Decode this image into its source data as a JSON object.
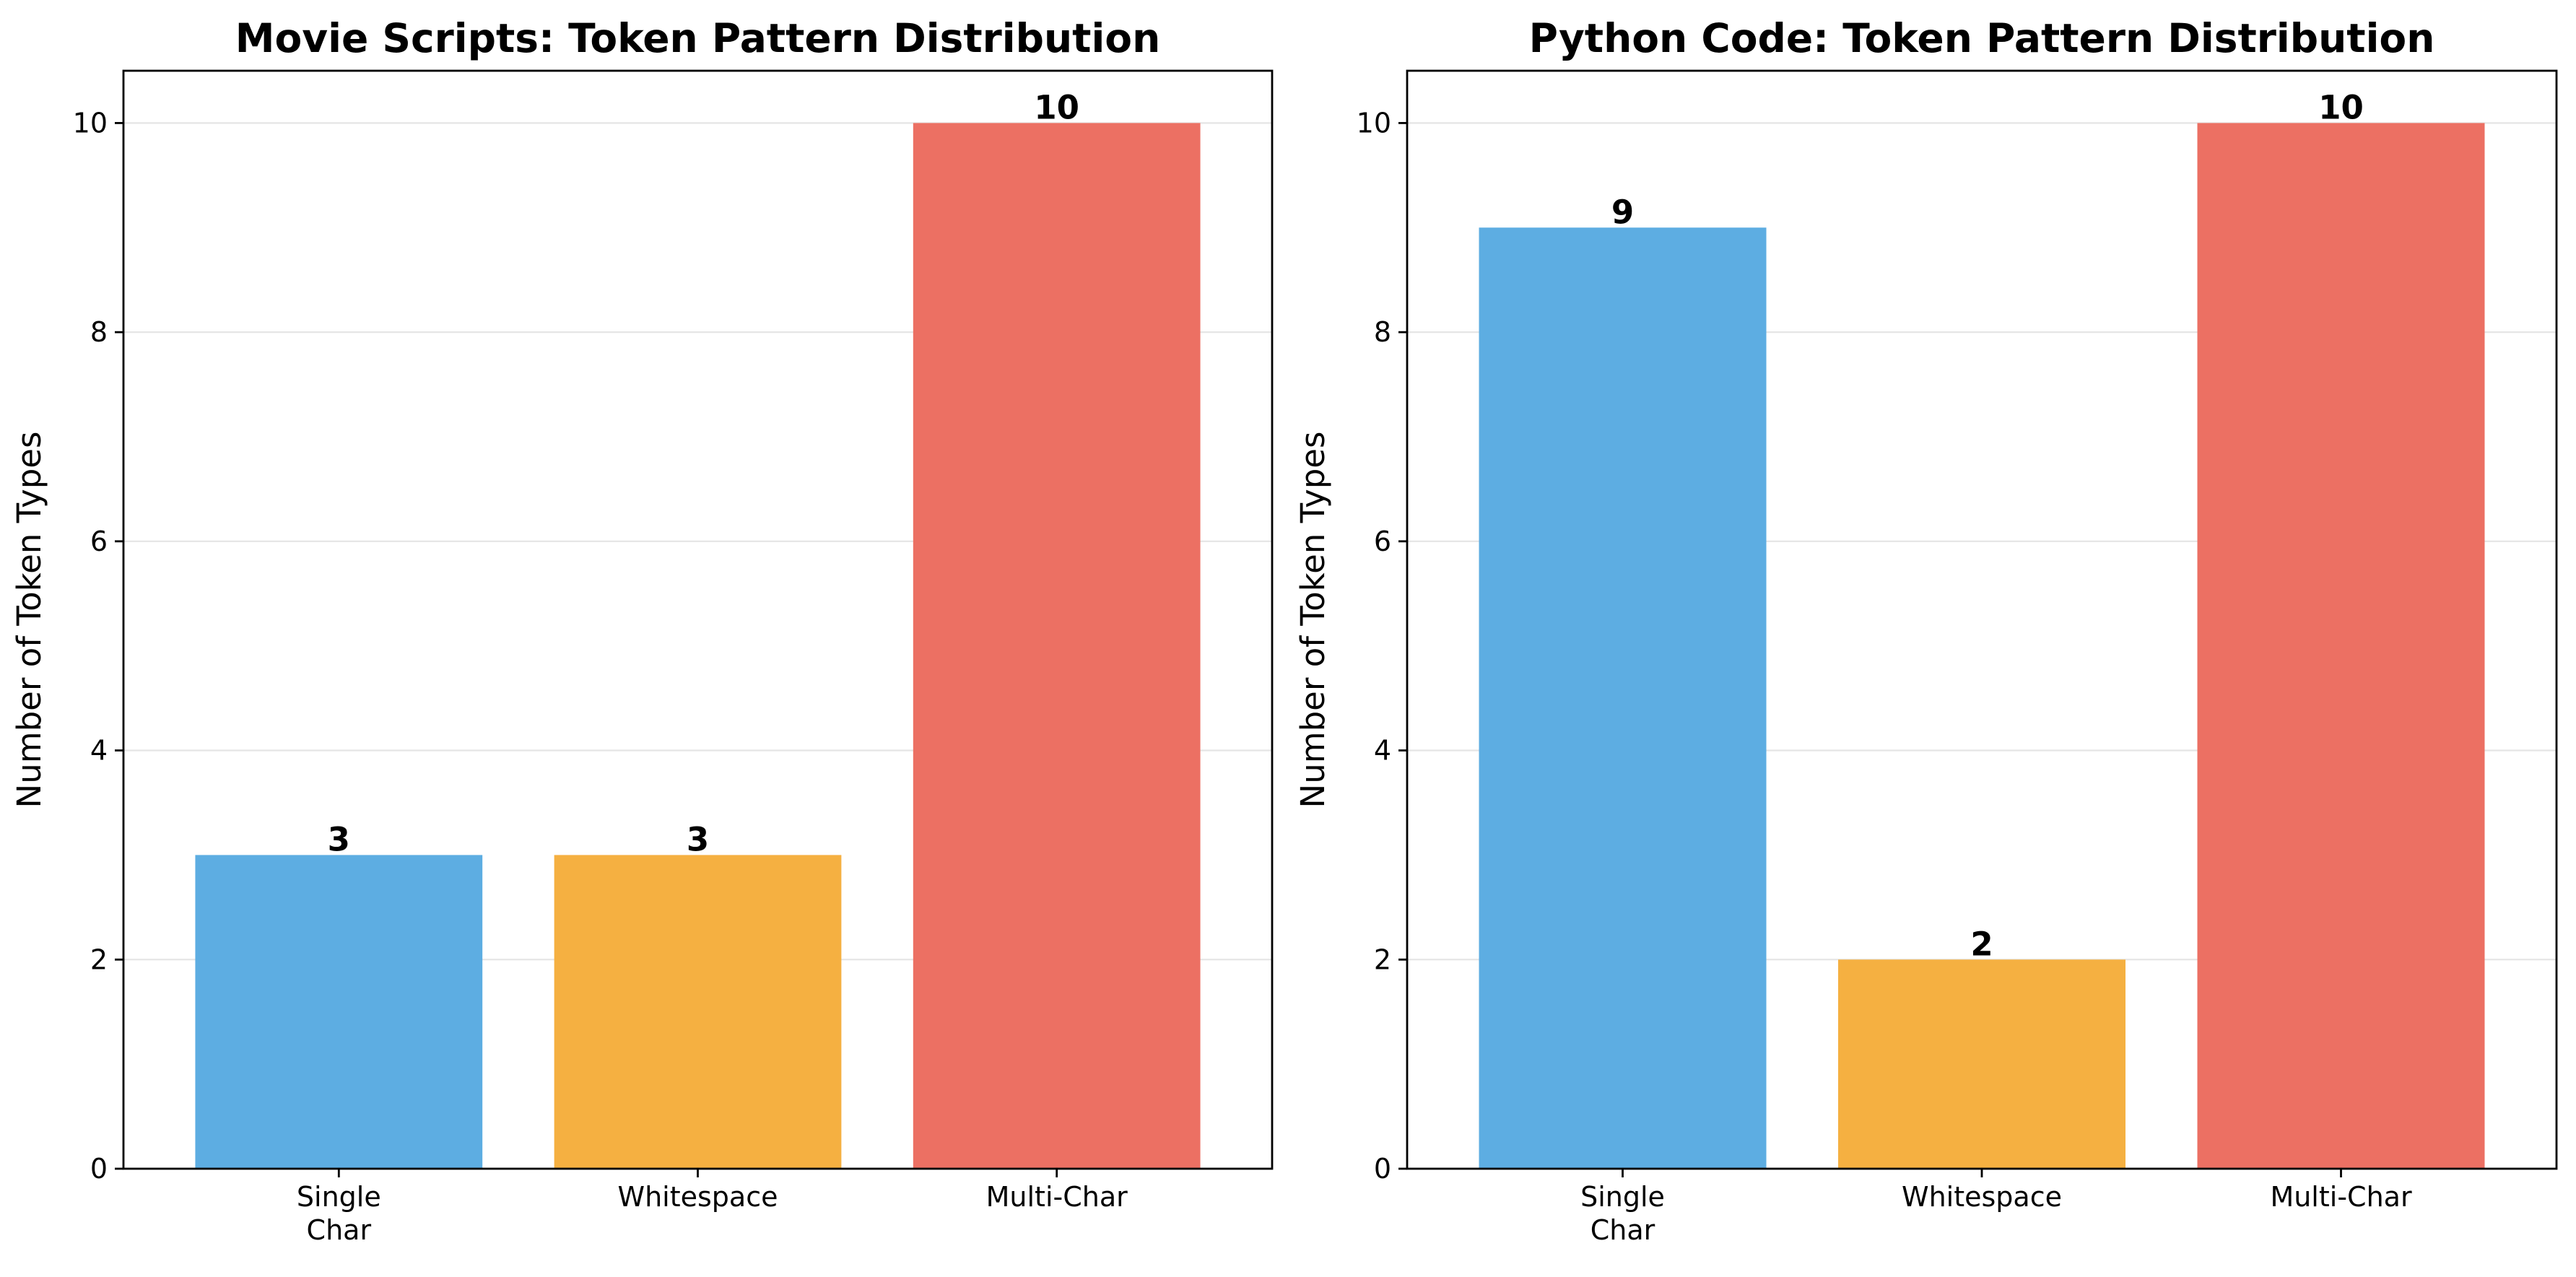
{
  "chart_data": [
    {
      "type": "bar",
      "title": "Movie Scripts: Token Pattern Distribution",
      "ylabel": "Number of Token Types",
      "categories": [
        [
          "Single",
          "Char"
        ],
        [
          "Whitespace"
        ],
        [
          "Multi-Char"
        ]
      ],
      "values": [
        3,
        3,
        10
      ],
      "value_labels": [
        "3",
        "3",
        "10"
      ],
      "colors": [
        "#5DADE2",
        "#F5B041",
        "#EC7063"
      ],
      "ylim": [
        0,
        10.5
      ],
      "yticks": [
        0,
        2,
        4,
        6,
        8,
        10
      ],
      "ytick_labels": [
        "0",
        "2",
        "4",
        "6",
        "8",
        "10"
      ],
      "grid": "y"
    },
    {
      "type": "bar",
      "title": "Python Code: Token Pattern Distribution",
      "ylabel": "Number of Token Types",
      "categories": [
        [
          "Single",
          "Char"
        ],
        [
          "Whitespace"
        ],
        [
          "Multi-Char"
        ]
      ],
      "values": [
        9,
        2,
        10
      ],
      "value_labels": [
        "9",
        "2",
        "10"
      ],
      "colors": [
        "#5DADE2",
        "#F5B041",
        "#EC7063"
      ],
      "ylim": [
        0,
        10.5
      ],
      "yticks": [
        0,
        2,
        4,
        6,
        8,
        10
      ],
      "ytick_labels": [
        "0",
        "2",
        "4",
        "6",
        "8",
        "10"
      ],
      "grid": "y"
    }
  ]
}
